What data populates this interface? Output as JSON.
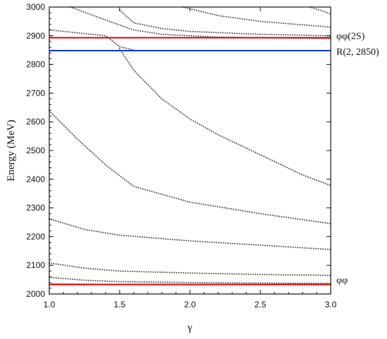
{
  "chart_data": {
    "type": "line",
    "xlabel": "γ",
    "ylabel": "Energy (MeV)",
    "xlim": [
      1.0,
      3.0
    ],
    "ylim": [
      2000,
      3000
    ],
    "x_ticks": [
      "1.0",
      "1.5",
      "2.0",
      "2.5",
      "3.0"
    ],
    "y_ticks": [
      "2000",
      "2100",
      "2200",
      "2300",
      "2400",
      "2500",
      "2600",
      "2700",
      "2800",
      "2900",
      "3000"
    ],
    "grid": false,
    "reference_lines": [
      {
        "label": "φφ(2S)",
        "y": 2893,
        "color": "#e00000"
      },
      {
        "label": "R(2, 2850)",
        "y": 2848,
        "color": "#1030e0"
      },
      {
        "label": "φφ",
        "y": 2033,
        "color": "#e00000"
      }
    ],
    "series": [
      {
        "style": "dotted",
        "points": [
          [
            1.0,
            2035
          ],
          [
            1.5,
            2033
          ],
          [
            2.0,
            2033
          ],
          [
            2.5,
            2033
          ],
          [
            3.0,
            2033
          ]
        ]
      },
      {
        "style": "dotted",
        "points": [
          [
            1.0,
            2058
          ],
          [
            1.25,
            2048
          ],
          [
            1.5,
            2043
          ],
          [
            2.0,
            2040
          ],
          [
            2.5,
            2038
          ],
          [
            3.0,
            2037
          ]
        ]
      },
      {
        "style": "dotted",
        "points": [
          [
            1.0,
            2108
          ],
          [
            1.25,
            2090
          ],
          [
            1.5,
            2080
          ],
          [
            2.0,
            2073
          ],
          [
            2.5,
            2068
          ],
          [
            3.0,
            2065
          ]
        ]
      },
      {
        "style": "dotted",
        "points": [
          [
            1.0,
            2262
          ],
          [
            1.25,
            2225
          ],
          [
            1.5,
            2205
          ],
          [
            2.0,
            2185
          ],
          [
            2.5,
            2170
          ],
          [
            3.0,
            2155
          ]
        ]
      },
      {
        "style": "dotted",
        "points": [
          [
            1.0,
            2638
          ],
          [
            1.2,
            2540
          ],
          [
            1.4,
            2450
          ],
          [
            1.6,
            2375
          ],
          [
            2.0,
            2320
          ],
          [
            2.5,
            2280
          ],
          [
            3.0,
            2245
          ]
        ]
      },
      {
        "style": "dotted",
        "points": [
          [
            1.5,
            2855
          ],
          [
            1.6,
            2780
          ],
          [
            1.8,
            2680
          ],
          [
            2.0,
            2610
          ],
          [
            2.2,
            2555
          ],
          [
            2.5,
            2485
          ],
          [
            2.8,
            2415
          ],
          [
            3.0,
            2378
          ]
        ]
      },
      {
        "style": "dotted",
        "points": [
          [
            1.0,
            2920
          ],
          [
            1.2,
            2910
          ],
          [
            1.4,
            2900
          ],
          [
            1.5,
            2862
          ],
          [
            1.6,
            2850
          ]
        ]
      },
      {
        "style": "dotted",
        "points": [
          [
            1.5,
            2990
          ],
          [
            1.6,
            2945
          ],
          [
            1.8,
            2925
          ],
          [
            2.0,
            2915
          ],
          [
            2.5,
            2905
          ],
          [
            3.0,
            2900
          ]
        ]
      },
      {
        "style": "dotted",
        "points": [
          [
            1.15,
            3000
          ],
          [
            1.4,
            2955
          ],
          [
            1.6,
            2920
          ],
          [
            1.8,
            2905
          ],
          [
            2.2,
            2895
          ],
          [
            3.0,
            2890
          ]
        ]
      },
      {
        "style": "dotted",
        "points": [
          [
            1.95,
            3000
          ],
          [
            2.2,
            2970
          ],
          [
            2.5,
            2950
          ],
          [
            2.8,
            2938
          ],
          [
            3.0,
            2930
          ]
        ]
      },
      {
        "style": "dotted",
        "points": [
          [
            2.85,
            3000
          ],
          [
            2.95,
            2985
          ],
          [
            3.0,
            2975
          ]
        ]
      }
    ]
  }
}
